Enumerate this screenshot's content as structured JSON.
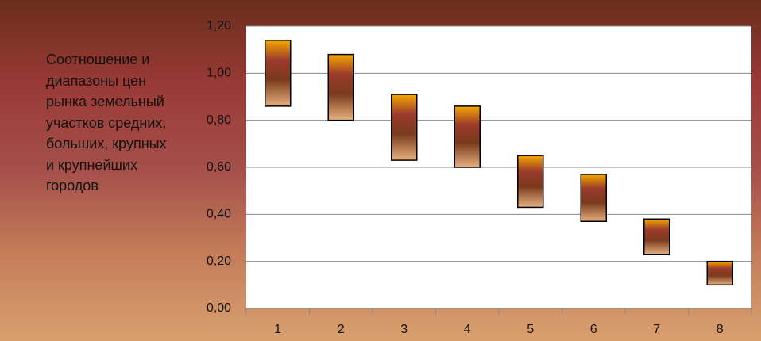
{
  "chart_data": {
    "type": "floating-bar",
    "title": "Соотношение и диапазоны цен рынка земельный участков средних, больших, крупных и крупнейших городов",
    "categories": [
      "1",
      "2",
      "3",
      "4",
      "5",
      "6",
      "7",
      "8"
    ],
    "low": [
      0.86,
      0.8,
      0.63,
      0.6,
      0.43,
      0.37,
      0.23,
      0.1
    ],
    "high": [
      1.14,
      1.08,
      0.91,
      0.86,
      0.65,
      0.57,
      0.38,
      0.2
    ],
    "ylim": [
      0,
      1.2
    ],
    "yticks": [
      {
        "value": 0,
        "label": "0,00"
      },
      {
        "value": 0.2,
        "label": "0,20"
      },
      {
        "value": 0.4,
        "label": "0,40"
      },
      {
        "value": 0.6,
        "label": "0,60"
      },
      {
        "value": 0.8,
        "label": "0,80"
      },
      {
        "value": 1.0,
        "label": "1,00"
      },
      {
        "value": 1.2,
        "label": "1,20"
      }
    ],
    "grid": true
  }
}
